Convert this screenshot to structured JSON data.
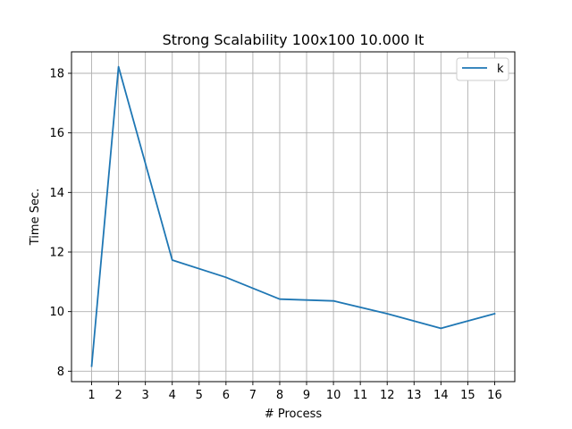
{
  "chart_data": {
    "type": "line",
    "title": "Strong Scalability 100x100 10.000 It",
    "xlabel": "# Process",
    "ylabel": "Time Sec.",
    "x_ticks": [
      1,
      2,
      3,
      4,
      5,
      6,
      7,
      8,
      9,
      10,
      11,
      12,
      13,
      14,
      15,
      16
    ],
    "y_ticks": [
      8,
      10,
      12,
      14,
      16,
      18
    ],
    "xlim": [
      0.25,
      16.75
    ],
    "ylim": [
      7.65,
      18.72
    ],
    "grid": true,
    "legend_position": "top-right",
    "series": [
      {
        "name": "k",
        "color": "#1f77b4",
        "x": [
          1,
          2,
          4,
          6,
          8,
          10,
          12,
          14,
          16
        ],
        "y": [
          8.17,
          18.22,
          11.73,
          11.15,
          10.42,
          10.36,
          9.93,
          9.44,
          9.93
        ]
      }
    ]
  }
}
